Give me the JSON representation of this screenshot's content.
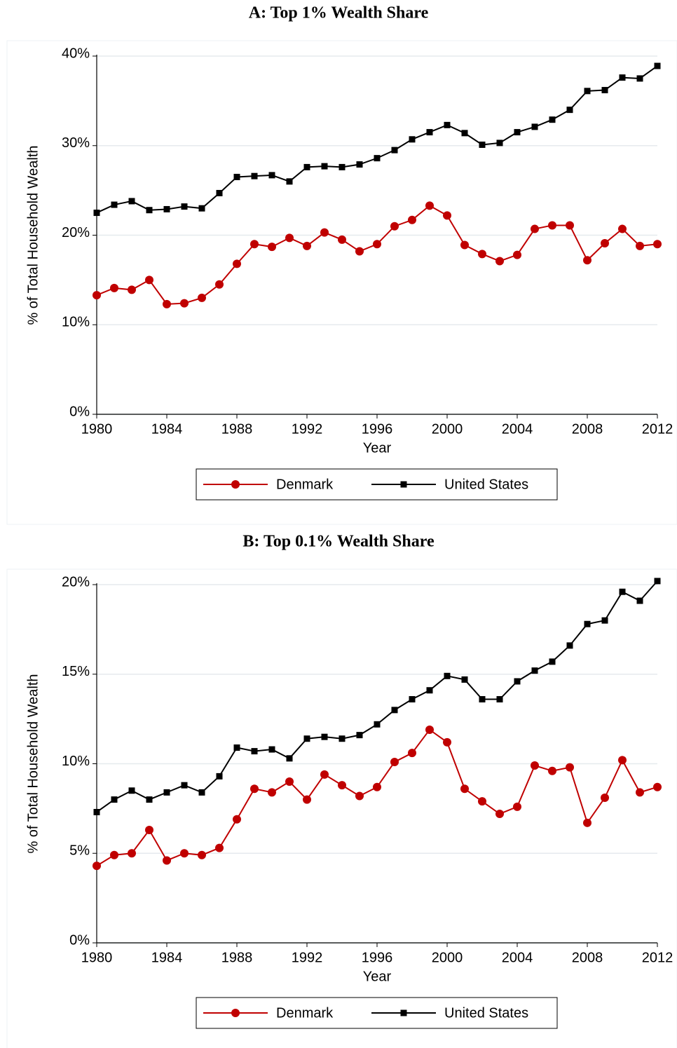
{
  "chart_data": [
    {
      "type": "line",
      "title": "A: Top 1% Wealth Share",
      "xlabel": "Year",
      "ylabel": "% of Total Household Wealth",
      "x": [
        1980,
        1981,
        1982,
        1983,
        1984,
        1985,
        1986,
        1987,
        1988,
        1989,
        1990,
        1991,
        1992,
        1993,
        1994,
        1995,
        1996,
        1997,
        1998,
        1999,
        2000,
        2001,
        2002,
        2003,
        2004,
        2005,
        2006,
        2007,
        2008,
        2009,
        2010,
        2011,
        2012
      ],
      "xlim": [
        1980,
        2012
      ],
      "xticks": [
        1980,
        1984,
        1988,
        1992,
        1996,
        2000,
        2004,
        2008,
        2012
      ],
      "ylim": [
        0,
        40
      ],
      "yticks": [
        {
          "value": 0,
          "label": "0%"
        },
        {
          "value": 10,
          "label": "10%"
        },
        {
          "value": 20,
          "label": "20%"
        },
        {
          "value": 30,
          "label": "30%"
        },
        {
          "value": 40,
          "label": "40%"
        }
      ],
      "grid": true,
      "series": [
        {
          "name": "Denmark",
          "color": "#c00000",
          "marker": "circle",
          "values": [
            13.3,
            14.1,
            13.9,
            15.0,
            12.3,
            12.4,
            13.0,
            14.5,
            16.8,
            19.0,
            18.7,
            19.7,
            18.8,
            20.3,
            19.5,
            18.2,
            19.0,
            21.0,
            21.7,
            23.3,
            22.2,
            18.9,
            17.9,
            17.1,
            17.8,
            20.7,
            21.1,
            21.1,
            17.2,
            19.1,
            20.7,
            18.8,
            19.0
          ]
        },
        {
          "name": "United States",
          "color": "#000000",
          "marker": "square",
          "values": [
            22.5,
            23.4,
            23.8,
            22.8,
            22.9,
            23.2,
            23.0,
            24.7,
            26.5,
            26.6,
            26.7,
            26.0,
            27.6,
            27.7,
            27.6,
            27.9,
            28.6,
            29.5,
            30.7,
            31.5,
            32.3,
            31.4,
            30.1,
            30.3,
            31.5,
            32.1,
            32.9,
            34.0,
            36.1,
            36.2,
            37.6,
            37.5,
            38.9
          ]
        }
      ]
    },
    {
      "type": "line",
      "title": "B: Top 0.1% Wealth Share",
      "xlabel": "Year",
      "ylabel": "% of Total Household Wealth",
      "x": [
        1980,
        1981,
        1982,
        1983,
        1984,
        1985,
        1986,
        1987,
        1988,
        1989,
        1990,
        1991,
        1992,
        1993,
        1994,
        1995,
        1996,
        1997,
        1998,
        1999,
        2000,
        2001,
        2002,
        2003,
        2004,
        2005,
        2006,
        2007,
        2008,
        2009,
        2010,
        2011,
        2012
      ],
      "xlim": [
        1980,
        2012
      ],
      "xticks": [
        1980,
        1984,
        1988,
        1992,
        1996,
        2000,
        2004,
        2008,
        2012
      ],
      "ylim": [
        0,
        20
      ],
      "yticks": [
        {
          "value": 0,
          "label": "0%"
        },
        {
          "value": 5,
          "label": "5%"
        },
        {
          "value": 10,
          "label": "10%"
        },
        {
          "value": 15,
          "label": "15%"
        },
        {
          "value": 20,
          "label": "20%"
        }
      ],
      "grid": true,
      "series": [
        {
          "name": "Denmark",
          "color": "#c00000",
          "marker": "circle",
          "values": [
            4.3,
            4.9,
            5.0,
            6.3,
            4.6,
            5.0,
            4.9,
            5.3,
            6.9,
            8.6,
            8.4,
            9.0,
            8.0,
            9.4,
            8.8,
            8.2,
            8.7,
            10.1,
            10.6,
            11.9,
            11.2,
            8.6,
            7.9,
            7.2,
            7.6,
            9.9,
            9.6,
            9.8,
            6.7,
            8.1,
            10.2,
            8.4,
            8.7
          ]
        },
        {
          "name": "United States",
          "color": "#000000",
          "marker": "square",
          "values": [
            7.3,
            8.0,
            8.5,
            8.0,
            8.4,
            8.8,
            8.4,
            9.3,
            10.9,
            10.7,
            10.8,
            10.3,
            11.4,
            11.5,
            11.4,
            11.6,
            12.2,
            13.0,
            13.6,
            14.1,
            14.9,
            14.7,
            13.6,
            13.6,
            14.6,
            15.2,
            15.7,
            16.6,
            17.8,
            18.0,
            19.6,
            19.1,
            20.2
          ]
        }
      ]
    }
  ]
}
